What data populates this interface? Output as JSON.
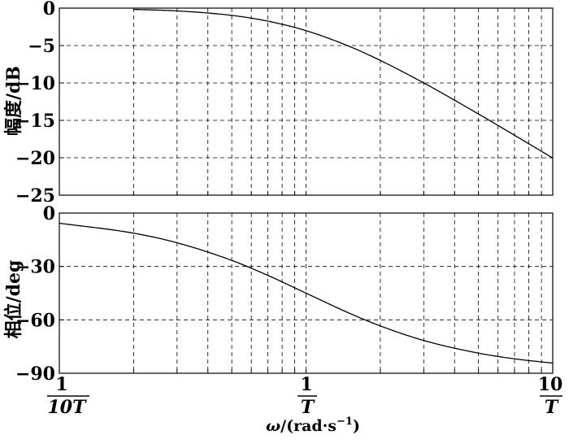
{
  "chart_data": [
    {
      "type": "line",
      "title": "",
      "ylabel": "幅度/dB",
      "xscale": "log",
      "xlim": [
        0.1,
        10
      ],
      "ylim": [
        -25,
        0
      ],
      "yticks": [
        "0",
        "−5",
        "−10",
        "−15",
        "−20",
        "−25"
      ],
      "ytick_values": [
        0,
        -5,
        -10,
        -15,
        -20,
        -25
      ],
      "grid": true,
      "series": [
        {
          "x": [
            0.2,
            0.3,
            0.5,
            0.7,
            1,
            1.5,
            2,
            3,
            5,
            7,
            10
          ],
          "y": [
            -0.17,
            -0.37,
            -0.97,
            -1.74,
            -3.01,
            -5.12,
            -6.99,
            -10.0,
            -14.15,
            -16.99,
            -20.04
          ]
        }
      ]
    },
    {
      "type": "line",
      "title": "",
      "ylabel": "相位/deg",
      "xscale": "log",
      "xlim": [
        0.1,
        10
      ],
      "ylim": [
        -90,
        0
      ],
      "yticks": [
        "0",
        "−30",
        "−60",
        "−90"
      ],
      "ytick_values": [
        0,
        -30,
        -60,
        -90
      ],
      "grid": true,
      "series": [
        {
          "x": [
            0.1,
            0.2,
            0.3,
            0.5,
            0.7,
            1,
            1.5,
            2,
            3,
            5,
            7,
            10
          ],
          "y": [
            -5.7,
            -11.3,
            -16.7,
            -26.6,
            -35.0,
            -45.0,
            -56.3,
            -63.4,
            -71.6,
            -78.7,
            -81.9,
            -84.3
          ]
        }
      ]
    }
  ],
  "x_axis": {
    "label_symbol": "ω",
    "label_unit": "/(rad·s",
    "label_exp": "−1",
    "label_close": ")",
    "ticks": [
      {
        "value": 0.1,
        "num": "1",
        "den": "10T"
      },
      {
        "value": 1,
        "num": "1",
        "den": "T"
      },
      {
        "value": 10,
        "num": "10",
        "den": "T"
      }
    ]
  }
}
